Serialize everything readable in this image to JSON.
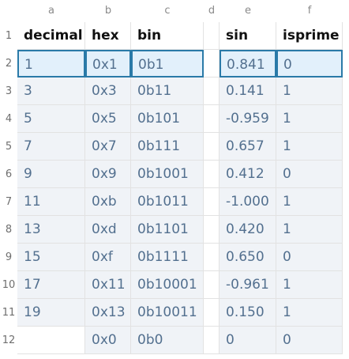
{
  "columns": [
    "a",
    "b",
    "c",
    "d",
    "e",
    "f"
  ],
  "rows": [
    "1",
    "2",
    "3",
    "4",
    "5",
    "6",
    "7",
    "8",
    "9",
    "10",
    "11",
    "12"
  ],
  "headers": {
    "decimal": "decimal",
    "hex": "hex",
    "bin": "bin",
    "sin": "sin",
    "isprime": "isprime"
  },
  "data": [
    {
      "decimal": "1",
      "hex": "0x1",
      "bin": "0b1",
      "sin": "0.841",
      "isprime": "0"
    },
    {
      "decimal": "3",
      "hex": "0x3",
      "bin": "0b11",
      "sin": "0.141",
      "isprime": "1"
    },
    {
      "decimal": "5",
      "hex": "0x5",
      "bin": "0b101",
      "sin": "-0.959",
      "isprime": "1"
    },
    {
      "decimal": "7",
      "hex": "0x7",
      "bin": "0b111",
      "sin": "0.657",
      "isprime": "1"
    },
    {
      "decimal": "9",
      "hex": "0x9",
      "bin": "0b1001",
      "sin": "0.412",
      "isprime": "0"
    },
    {
      "decimal": "11",
      "hex": "0xb",
      "bin": "0b1011",
      "sin": "-1.000",
      "isprime": "1"
    },
    {
      "decimal": "13",
      "hex": "0xd",
      "bin": "0b1101",
      "sin": "0.420",
      "isprime": "1"
    },
    {
      "decimal": "15",
      "hex": "0xf",
      "bin": "0b1111",
      "sin": "0.650",
      "isprime": "0"
    },
    {
      "decimal": "17",
      "hex": "0x11",
      "bin": "0b10001",
      "sin": "-0.961",
      "isprime": "1"
    },
    {
      "decimal": "19",
      "hex": "0x13",
      "bin": "0b10011",
      "sin": "0.150",
      "isprime": "1"
    },
    {
      "decimal": "",
      "hex": "0x0",
      "bin": "0b0",
      "sin": "0",
      "isprime": "0"
    }
  ],
  "selected_row": 0
}
